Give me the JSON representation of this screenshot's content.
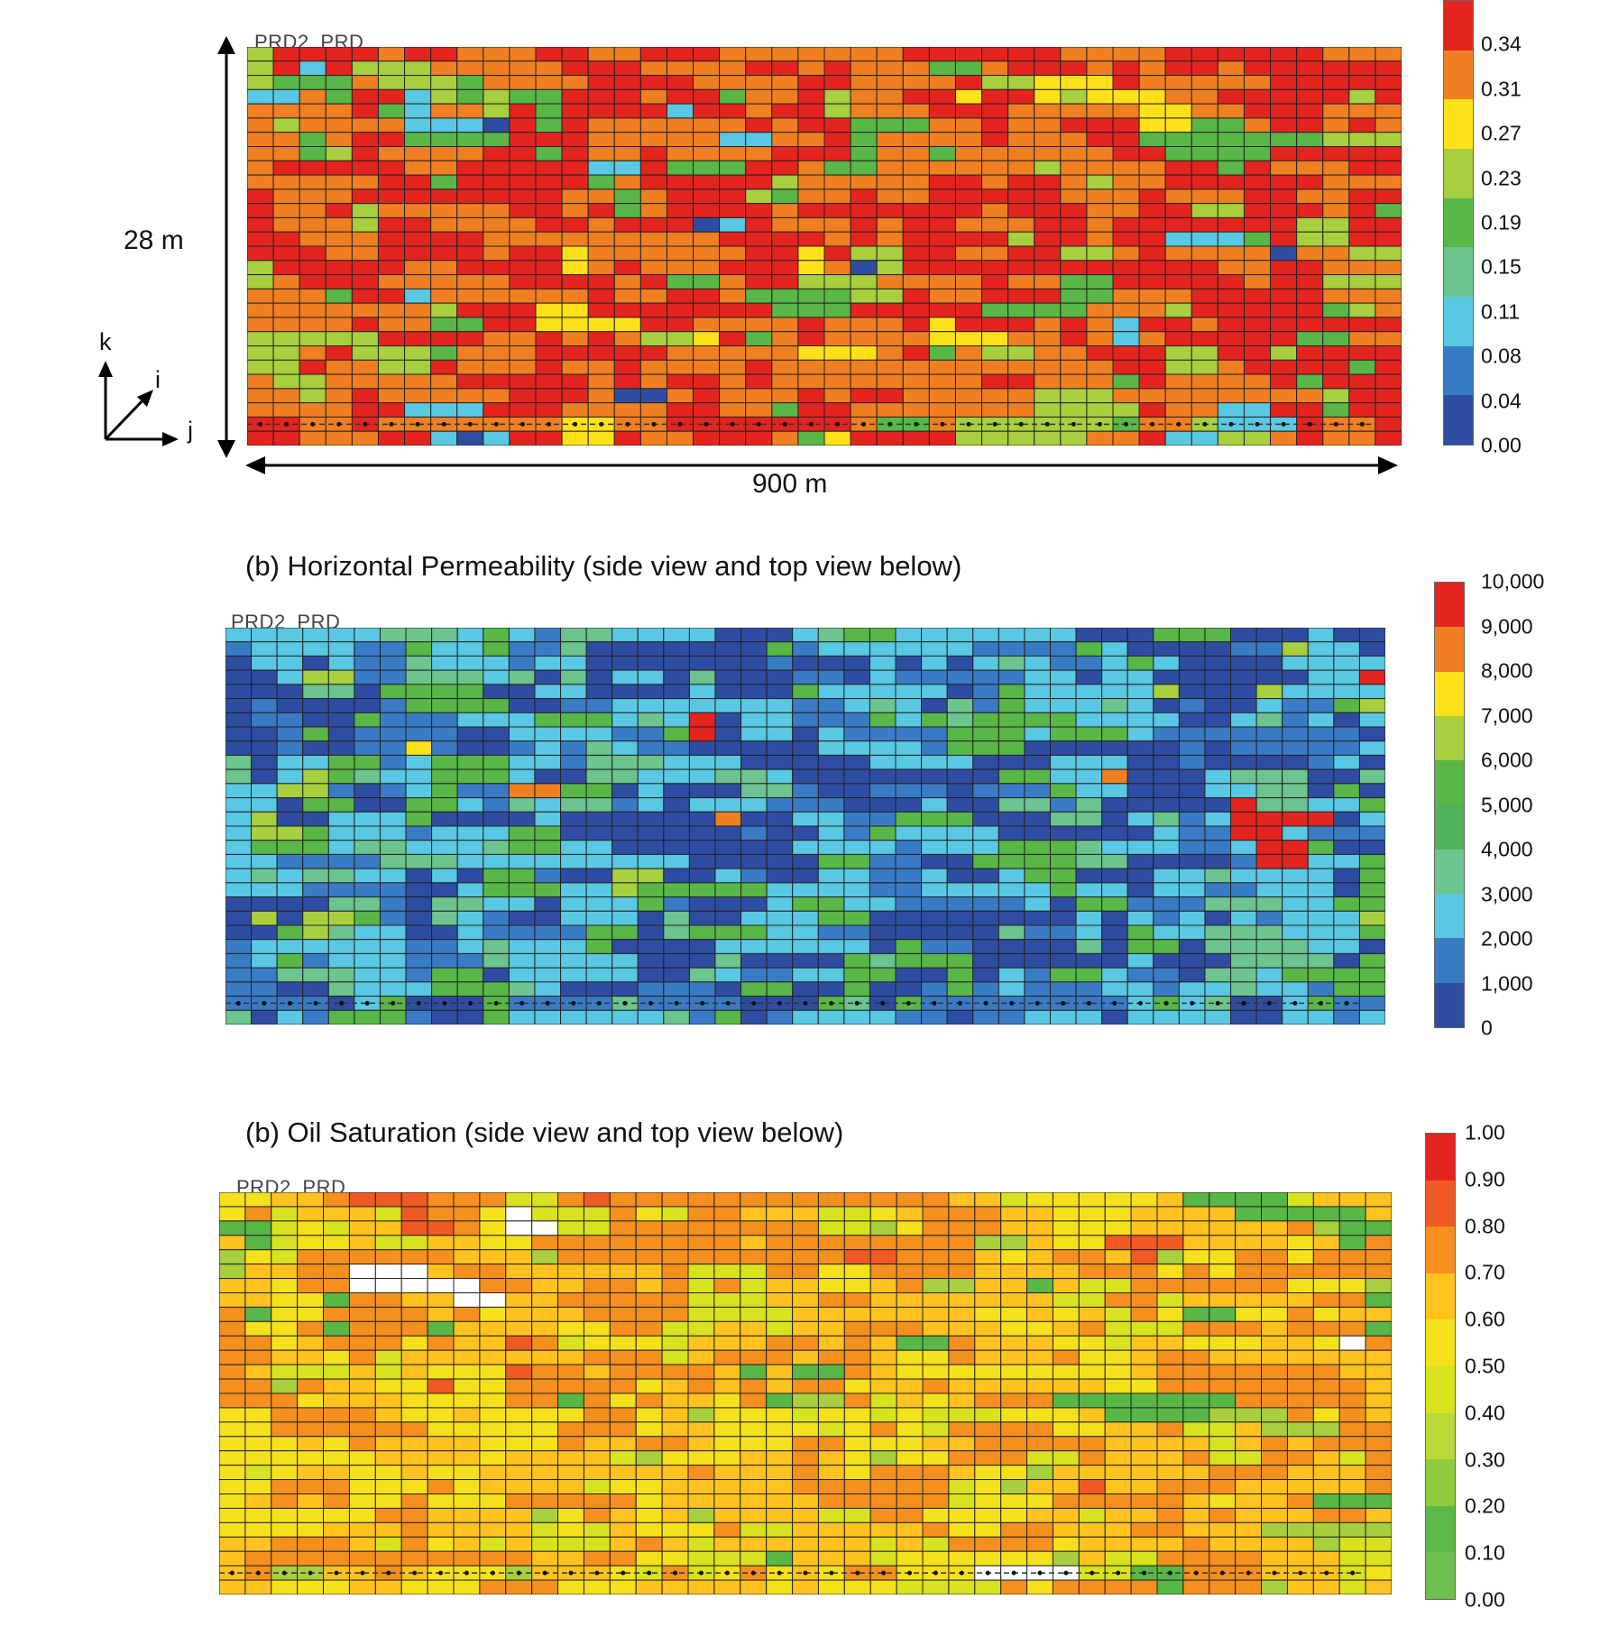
{
  "panel_porosity": {
    "well_label": "PRD2_PRD",
    "dim_vertical": "28 m",
    "dim_horizontal": "900 m",
    "axis_labels": {
      "k": "k",
      "i": "i",
      "j": "j"
    },
    "colorbar": {
      "labels": [
        "0.34",
        "0.31",
        "0.27",
        "0.23",
        "0.19",
        "0.15",
        "0.11",
        "0.08",
        "0.04",
        "0.00"
      ],
      "colors": [
        "#e4241f",
        "#f07f22",
        "#ffe11a",
        "#a7cf3e",
        "#58b747",
        "#6cc48e",
        "#59c8e3",
        "#3a7bc5",
        "#2e4da2"
      ]
    },
    "palette": [
      "#e4241f",
      "#f07f22",
      "#ffe11a",
      "#a7cf3e",
      "#58b747",
      "#59c8e3",
      "#2e4da2"
    ],
    "palette_weights": [
      40,
      38,
      2,
      8,
      9,
      2,
      1
    ]
  },
  "panel_permeability": {
    "title": "(b) Horizontal Permeability (side view and top view below)",
    "well_label": "PRD2_PRD",
    "colorbar": {
      "labels": [
        "10,000",
        "9,000",
        "8,000",
        "7,000",
        "6,000",
        "5,000",
        "4,000",
        "3,000",
        "2,000",
        "1,000",
        "0"
      ],
      "colors": [
        "#e4241f",
        "#f07f22",
        "#ffe11a",
        "#a7cf3e",
        "#58b747",
        "#4fb45a",
        "#6cc48e",
        "#59c8e3",
        "#3a7bc5",
        "#2e4da2"
      ]
    },
    "palette": [
      "#2e4da2",
      "#3a7bc5",
      "#59c8e3",
      "#6cc48e",
      "#58b747",
      "#a7cf3e",
      "#ffe11a",
      "#f07f22",
      "#e4241f"
    ],
    "palette_weights": [
      26,
      14,
      30,
      12,
      14,
      2,
      1,
      0.5,
      0.5
    ]
  },
  "panel_saturation": {
    "title": "(b) Oil Saturation (side view and top view below)",
    "well_label": "PRD2_PRD",
    "colorbar": {
      "labels": [
        "1.00",
        "0.90",
        "0.80",
        "0.70",
        "0.60",
        "0.50",
        "0.40",
        "0.30",
        "0.20",
        "0.10",
        "0.00"
      ],
      "colors": [
        "#e4241f",
        "#ef5a24",
        "#f5901f",
        "#ffc21e",
        "#f5e11b",
        "#d9e21f",
        "#b9d83a",
        "#8fcb3e",
        "#5bb947",
        "#6fbd4e"
      ]
    },
    "palette": [
      "#f5901f",
      "#ffc21e",
      "#f5e11b",
      "#d9e21f",
      "#a7cf3e",
      "#58b747",
      "#ef5a24",
      "#ffffff"
    ],
    "palette_weights": [
      30,
      30,
      18,
      10,
      5,
      4,
      2,
      1
    ]
  }
}
